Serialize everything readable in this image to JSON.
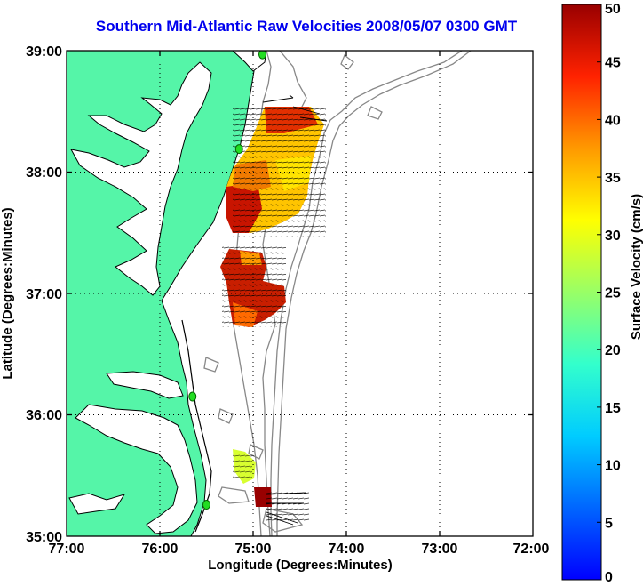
{
  "title": "Southern Mid-Atlantic Raw Velocities 2008/05/07 0300 GMT",
  "map": {
    "xlabel": "Longitude (Degrees:Minutes)",
    "ylabel": "Latitude (Degrees:Minutes)",
    "x_ticks": [
      "77:00",
      "76:00",
      "75:00",
      "74:00",
      "73:00",
      "72:00"
    ],
    "y_ticks": [
      "39:00",
      "38:00",
      "37:00",
      "36:00",
      "35:00"
    ],
    "lon_range": [
      -77,
      -72
    ],
    "lat_range": [
      35,
      39
    ],
    "grid": "dotted",
    "land_color": "#55f5a8",
    "bathymetry_color": "#888888"
  },
  "colorbar": {
    "label": "Surface Velocity (cm/s)",
    "ticks": [
      "0",
      "5",
      "10",
      "15",
      "20",
      "25",
      "30",
      "35",
      "40",
      "45",
      "50"
    ],
    "range": [
      0,
      50
    ],
    "colormap": "jet"
  },
  "stations": [
    {
      "name": "",
      "lon": -74.9,
      "lat": 38.97
    },
    {
      "name": "",
      "lon": -75.15,
      "lat": 38.19
    },
    {
      "name": "",
      "lon": -75.65,
      "lat": 36.15
    },
    {
      "name": "",
      "lon": -75.5,
      "lat": 35.26
    }
  ]
}
